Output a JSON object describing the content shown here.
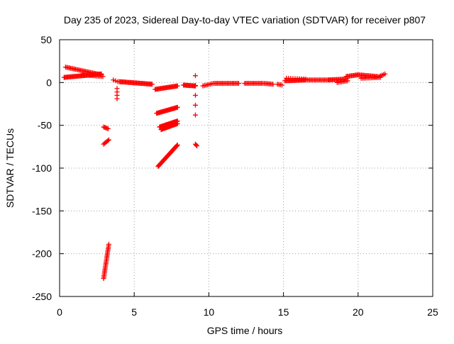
{
  "chart_data": {
    "type": "scatter",
    "title": "Day 235 of 2023, Sidereal Day-to-day VTEC variation (SDTVAR) for receiver p807",
    "xlabel": "GPS time / hours",
    "ylabel": "SDTVAR / TECUs",
    "xlim": [
      0,
      25
    ],
    "ylim": [
      -250,
      50
    ],
    "xticks": [
      0,
      5,
      10,
      15,
      20,
      25
    ],
    "yticks": [
      50,
      0,
      -50,
      -100,
      -150,
      -200,
      -250
    ],
    "grid": true,
    "legend": "none",
    "marker": "+",
    "color": "#ff0000",
    "segments": [
      {
        "x0": 0.3,
        "x1": 2.8,
        "y0": 6,
        "y1": 10,
        "n": 40
      },
      {
        "x0": 0.4,
        "x1": 2.8,
        "y0": 18,
        "y1": 9,
        "n": 30
      },
      {
        "x0": 1.5,
        "x1": 2.9,
        "y0": 9,
        "y1": 7,
        "n": 15
      },
      {
        "x0": 2.95,
        "x1": 3.25,
        "y0": -52,
        "y1": -54,
        "n": 5
      },
      {
        "x0": 2.95,
        "x1": 3.3,
        "y0": -72,
        "y1": -67,
        "n": 6
      },
      {
        "x0": 2.95,
        "x1": 3.3,
        "y0": -229,
        "y1": -189,
        "n": 24
      },
      {
        "x0": 3.6,
        "x1": 3.9,
        "y0": 3,
        "y1": 1,
        "n": 3
      },
      {
        "x0": 3.85,
        "x1": 3.85,
        "y0": -7,
        "y1": -19,
        "n": 4
      },
      {
        "x0": 4.0,
        "x1": 6.2,
        "y0": 1,
        "y1": -2,
        "n": 35
      },
      {
        "x0": 6.4,
        "x1": 7.9,
        "y0": -8,
        "y1": -4,
        "n": 25
      },
      {
        "x0": 6.5,
        "x1": 7.9,
        "y0": -36,
        "y1": -29,
        "n": 25
      },
      {
        "x0": 6.7,
        "x1": 7.9,
        "y0": -52,
        "y1": -45,
        "n": 25
      },
      {
        "x0": 6.8,
        "x1": 7.9,
        "y0": -55,
        "y1": -48,
        "n": 20
      },
      {
        "x0": 6.6,
        "x1": 7.9,
        "y0": -98,
        "y1": -73,
        "n": 35
      },
      {
        "x0": 8.3,
        "x1": 9.1,
        "y0": -3,
        "y1": -4,
        "n": 14
      },
      {
        "x0": 9.1,
        "x1": 9.1,
        "y0": 8,
        "y1": -38,
        "n": 5
      },
      {
        "x0": 9.1,
        "x1": 9.2,
        "y0": -72,
        "y1": -74,
        "n": 3
      },
      {
        "x0": 9.6,
        "x1": 10.3,
        "y0": -4,
        "y1": -1,
        "n": 8
      },
      {
        "x0": 10.4,
        "x1": 12.0,
        "y0": -1,
        "y1": -1,
        "n": 20
      },
      {
        "x0": 12.4,
        "x1": 13.6,
        "y0": -1,
        "y1": -1,
        "n": 15
      },
      {
        "x0": 13.7,
        "x1": 14.3,
        "y0": -1,
        "y1": -2,
        "n": 8
      },
      {
        "x0": 14.6,
        "x1": 14.9,
        "y0": -2,
        "y1": -3,
        "n": 4
      },
      {
        "x0": 15.1,
        "x1": 16.5,
        "y0": 2,
        "y1": 3,
        "n": 22
      },
      {
        "x0": 15.2,
        "x1": 16.5,
        "y0": 5,
        "y1": 4,
        "n": 10
      },
      {
        "x0": 16.6,
        "x1": 18.0,
        "y0": 3,
        "y1": 3,
        "n": 18
      },
      {
        "x0": 18.0,
        "x1": 19.2,
        "y0": 3,
        "y1": 4,
        "n": 18
      },
      {
        "x0": 18.6,
        "x1": 19.3,
        "y0": 0,
        "y1": 2,
        "n": 8
      },
      {
        "x0": 19.2,
        "x1": 20.0,
        "y0": 7,
        "y1": 9,
        "n": 12
      },
      {
        "x0": 20.0,
        "x1": 21.3,
        "y0": 9,
        "y1": 7,
        "n": 18
      },
      {
        "x0": 20.2,
        "x1": 21.5,
        "y0": 5,
        "y1": 6,
        "n": 14
      },
      {
        "x0": 21.4,
        "x1": 21.8,
        "y0": 7,
        "y1": 10,
        "n": 5
      }
    ]
  }
}
